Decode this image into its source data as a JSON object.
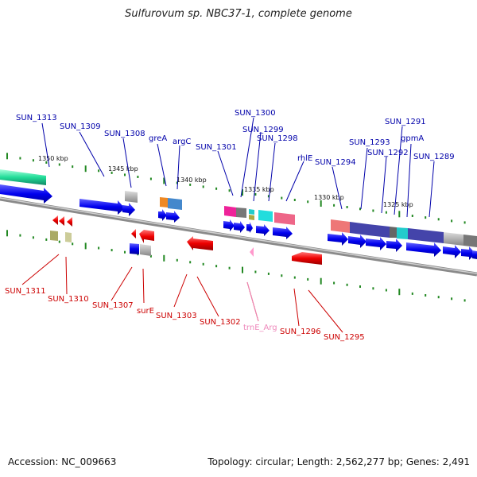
{
  "title": "Sulfurovum sp. NBC37-1, complete genome",
  "footer": {
    "accession": "Accession: NC_009663",
    "summary": "Topology: circular; Length: 2,562,277 bp; Genes: 2,491"
  },
  "scale_labels": [
    "1350 kbp",
    "1345 kbp",
    "1340 kbp",
    "1335 kbp",
    "1330 kbp",
    "1325 kbp"
  ],
  "colors": {
    "forward_label": "#0000aa",
    "reverse_label": "#cc0000",
    "rna_label": "#ee88bb",
    "forward_gene": "#0000ee",
    "reverse_gene": "#ee0000",
    "tick": "#228822",
    "backbone": "#777777"
  },
  "top_labels": [
    "SUN_1313",
    "SUN_1309",
    "SUN_1308",
    "greA",
    "argC",
    "SUN_1301",
    "SUN_1300",
    "SUN_1299",
    "SUN_1298",
    "rhlE",
    "SUN_1294",
    "SUN_1293",
    "SUN_1292",
    "SUN_1291",
    "gpmA",
    "SUN_1289"
  ],
  "bottom_labels": [
    "SUN_1311",
    "SUN_1310",
    "SUN_1307",
    "surE",
    "SUN_1303",
    "SUN_1302",
    "trnE_Arg",
    "SUN_1296",
    "SUN_1295"
  ]
}
